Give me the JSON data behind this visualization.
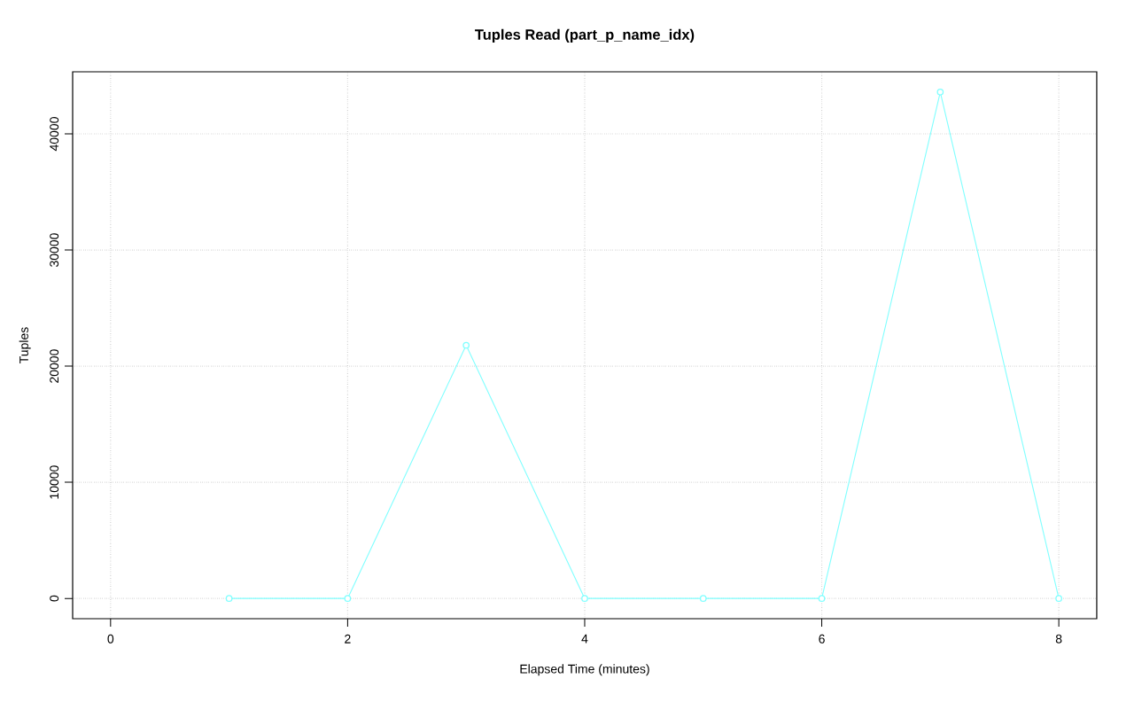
{
  "chart_data": {
    "type": "line",
    "title": "Tuples Read (part_p_name_idx)",
    "xlabel": "Elapsed Time (minutes)",
    "ylabel": "Tuples",
    "x": [
      1,
      2,
      3,
      4,
      5,
      6,
      7,
      8
    ],
    "series": [
      {
        "color": "#80ffff",
        "values": [
          0,
          0,
          21800,
          0,
          0,
          0,
          43600,
          0
        ]
      }
    ],
    "xlim": [
      -0.32,
      8.32
    ],
    "ylim": [
      -1744,
      45344
    ],
    "xticks": [
      0,
      2,
      4,
      6,
      8
    ],
    "yticks": [
      0,
      10000,
      20000,
      30000,
      40000
    ],
    "grid": true,
    "marker": "circle",
    "line_style": "solid"
  }
}
